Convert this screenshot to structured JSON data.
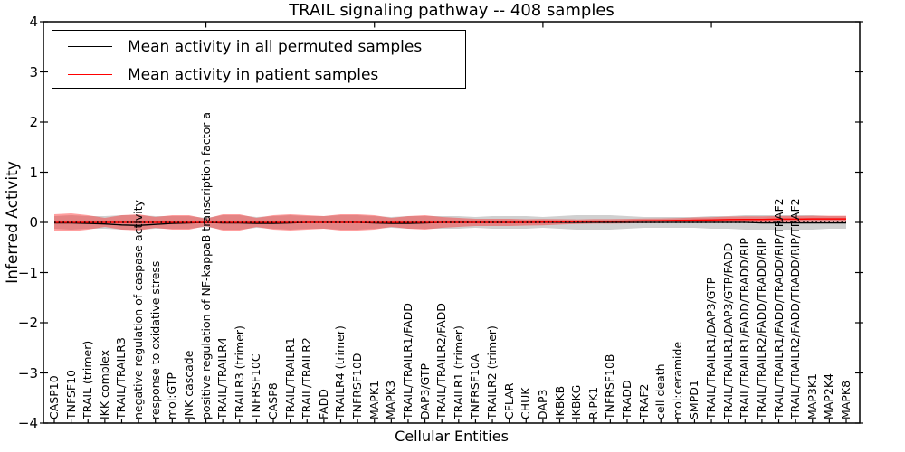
{
  "figure": {
    "title": "TRAIL signaling pathway -- 408 samples",
    "x_axis_label": "Cellular Entities",
    "y_axis_label": "Inferred Activity",
    "y_tick_labels": [
      "4",
      "3",
      "2",
      "1",
      "0",
      "−1",
      "−2",
      "−3",
      "−4"
    ]
  },
  "legend": {
    "items": [
      {
        "label": "Mean activity in all permuted samples",
        "color": "#000000"
      },
      {
        "label": "Mean activity in patient samples",
        "color": "#ff0000"
      }
    ]
  },
  "chart_data": {
    "type": "violin",
    "title": "TRAIL signaling pathway -- 408 samples",
    "xlabel": "Cellular Entities",
    "ylabel": "Inferred Activity",
    "ylim": [
      -4,
      4
    ],
    "yticks": [
      4,
      3,
      2,
      1,
      0,
      -1,
      -2,
      -3,
      -4
    ],
    "grid": false,
    "legend_position": "upper left",
    "categories": [
      "CASP10",
      "TNFSF10",
      "TRAIL (trimer)",
      "IKK complex",
      "TRAIL/TRAILR3",
      "negative regulation of caspase activity",
      "response to oxidative stress",
      "mol:GTP",
      "JNK cascade",
      "positive regulation of NF-kappaB transcription factor a",
      "TRAIL/TRAILR4",
      "TRAILR3 (trimer)",
      "TNFRSF10C",
      "CASP8",
      "TRAIL/TRAILR1",
      "TRAIL/TRAILR2",
      "FADD",
      "TRAILR4 (trimer)",
      "TNFRSF10D",
      "MAPK1",
      "MAPK3",
      "TRAIL/TRAILR1/FADD",
      "DAP3/GTP",
      "TRAIL/TRAILR2/FADD",
      "TRAILR1 (trimer)",
      "TNFRSF10A",
      "TRAILR2 (trimer)",
      "CFLAR",
      "CHUK",
      "DAP3",
      "IKBKB",
      "IKBKG",
      "RIPK1",
      "TNFRSF10B",
      "TRADD",
      "TRAF2",
      "cell death",
      "mol:ceramide",
      "SMPD1",
      "TRAIL/TRAILR1/DAP3/GTP",
      "TRAIL/TRAILR1/DAP3/GTP/FADD",
      "TRAIL/TRAILR1/FADD/TRADD/RIP",
      "TRAIL/TRAILR2/FADD/TRADD/RIP",
      "TRAIL/TRAILR1/FADD/TRADD/RIP/TRAF2",
      "TRAIL/TRAILR2/FADD/TRADD/RIP/TRAF2",
      "MAP3K1",
      "MAP2K4",
      "MAPK8"
    ],
    "series": [
      {
        "name": "Mean activity in all permuted samples",
        "color": "#000000",
        "style": "solid",
        "values": [
          -0.01,
          -0.01,
          -0.02,
          -0.03,
          -0.05,
          -0.06,
          -0.04,
          -0.02,
          -0.01,
          0,
          -0.01,
          -0.01,
          -0.02,
          -0.02,
          -0.01,
          0,
          0,
          0,
          0,
          -0.01,
          -0.02,
          -0.02,
          -0.01,
          0,
          0,
          0,
          0,
          0,
          0,
          0,
          0,
          0,
          0,
          0,
          0,
          0,
          0,
          0,
          0,
          0,
          0,
          0,
          -0.01,
          -0.01,
          -0.01,
          -0.01,
          -0.01,
          -0.01
        ]
      },
      {
        "name": "Mean activity in patient samples",
        "color": "#ff0000",
        "style": "solid",
        "values": [
          0,
          0,
          0,
          0,
          0,
          0,
          0,
          0,
          0,
          0,
          0,
          0,
          0,
          0,
          0,
          0,
          0,
          0,
          0,
          0,
          0,
          0,
          0,
          0,
          0,
          0,
          0,
          0,
          0,
          0.005,
          0.01,
          0.015,
          0.02,
          0.02,
          0.025,
          0.03,
          0.035,
          0.04,
          0.045,
          0.05,
          0.055,
          0.06,
          0.06,
          0.065,
          0.065,
          0.07,
          0.07,
          0.07
        ]
      }
    ],
    "distributions": [
      {
        "name": "permuted samples activity distribution",
        "color": "#8f8f8f",
        "opacity": 0.42,
        "center": 0,
        "halfwidths": [
          0.126,
          0.144,
          0.126,
          0.126,
          0.144,
          0.144,
          0.126,
          0.126,
          0.126,
          0.09,
          0.144,
          0.144,
          0.108,
          0.126,
          0.144,
          0.126,
          0.126,
          0.144,
          0.144,
          0.126,
          0.108,
          0.126,
          0.126,
          0.126,
          0.126,
          0.108,
          0.126,
          0.126,
          0.126,
          0.108,
          0.126,
          0.144,
          0.144,
          0.144,
          0.126,
          0.108,
          0.108,
          0.108,
          0.108,
          0.126,
          0.126,
          0.144,
          0.144,
          0.144,
          0.144,
          0.144,
          0.126,
          0.126
        ]
      },
      {
        "name": "patient samples activity distribution",
        "color": "#ff1a1a",
        "opacity": 0.42,
        "center": "patient_mean",
        "halfwidths": [
          0.162,
          0.18,
          0.144,
          0.09,
          0.144,
          0.162,
          0.108,
          0.144,
          0.144,
          0.072,
          0.162,
          0.162,
          0.09,
          0.144,
          0.162,
          0.144,
          0.126,
          0.162,
          0.162,
          0.144,
          0.09,
          0.126,
          0.144,
          0.108,
          0.09,
          0.072,
          0.072,
          0.072,
          0.063,
          0.063,
          0.054,
          0.045,
          0.045,
          0.045,
          0.045,
          0.045,
          0.045,
          0.045,
          0.054,
          0.054,
          0.063,
          0.063,
          0.063,
          0.063,
          0.063,
          0.063,
          0.063,
          0.063
        ]
      }
    ],
    "zero_reference_line": {
      "y": 0,
      "style": "dotted",
      "color": "#000000"
    },
    "top_tick_category_numbers": [
      10,
      20,
      30,
      40
    ]
  }
}
